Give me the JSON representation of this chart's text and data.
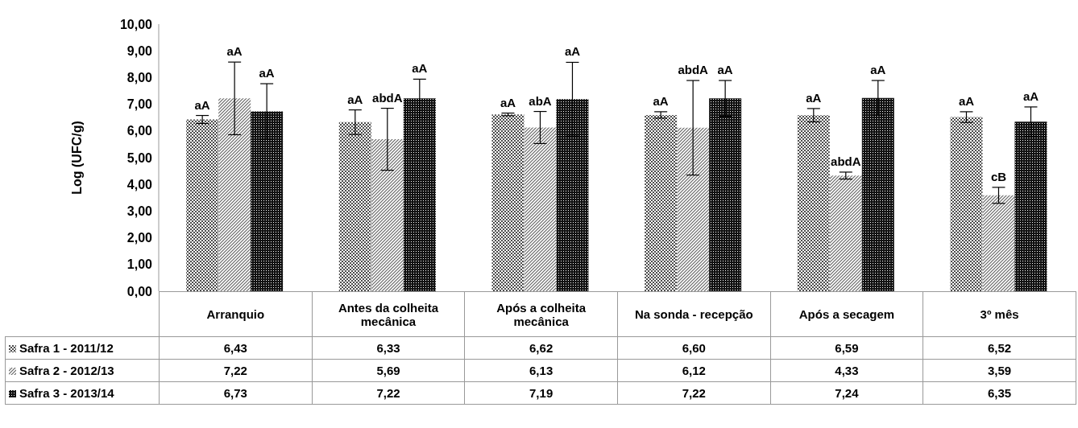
{
  "chart_data": {
    "type": "bar",
    "ylabel": "Log (UFC/g)",
    "categories": [
      "Arranquio",
      "Antes da colheita mecânica",
      "Após a colheita mecânica",
      "Na sonda - recepção",
      "Após a secagem",
      "3º mês"
    ],
    "series": [
      {
        "name": "Safra 1 - 2011/12",
        "color": "#4d4d4d",
        "values": [
          6.43,
          6.33,
          6.62,
          6.6,
          6.59,
          6.52
        ],
        "value_labels": [
          "6,43",
          "6,33",
          "6,62",
          "6,60",
          "6,59",
          "6,52"
        ],
        "errors": [
          0.15,
          0.46,
          0.05,
          0.12,
          0.25,
          0.2
        ]
      },
      {
        "name": "Safra 2 - 2012/13",
        "color": "#666666",
        "values": [
          7.22,
          5.69,
          6.13,
          6.12,
          4.33,
          3.59
        ],
        "value_labels": [
          "7,22",
          "5,69",
          "6,13",
          "6,12",
          "4,33",
          "3,59"
        ],
        "errors": [
          1.36,
          1.16,
          0.6,
          1.77,
          0.13,
          0.3
        ]
      },
      {
        "name": "Safra 3 - 2013/14",
        "color": "#111111",
        "values": [
          6.73,
          7.22,
          7.19,
          7.22,
          7.24,
          6.35
        ],
        "value_labels": [
          "6,73",
          "7,22",
          "7,19",
          "7,22",
          "7,24",
          "6,35"
        ],
        "errors": [
          1.04,
          0.72,
          1.38,
          0.67,
          0.65,
          0.55
        ]
      }
    ],
    "ylim": [
      0,
      10
    ],
    "yticks": [
      {
        "value": 0,
        "label": "0,00"
      },
      {
        "value": 1,
        "label": "1,00"
      },
      {
        "value": 2,
        "label": "2,00"
      },
      {
        "value": 3,
        "label": "3,00"
      },
      {
        "value": 4,
        "label": "4,00"
      },
      {
        "value": 5,
        "label": "5,00"
      },
      {
        "value": 6,
        "label": "6,00"
      },
      {
        "value": 7,
        "label": "7,00"
      },
      {
        "value": 8,
        "label": "8,00"
      },
      {
        "value": 9,
        "label": "9,00"
      },
      {
        "value": 10,
        "label": "10,00"
      }
    ],
    "grid": false,
    "legend": "bottom",
    "annotations": [
      "aA",
      "aA",
      "aA",
      "aA",
      "abdA",
      "aA",
      "aA",
      "abA",
      "aA",
      "aA",
      "abdA",
      "aA",
      "aA",
      "abdA",
      "aA",
      "aA",
      "cB",
      "aA"
    ]
  }
}
